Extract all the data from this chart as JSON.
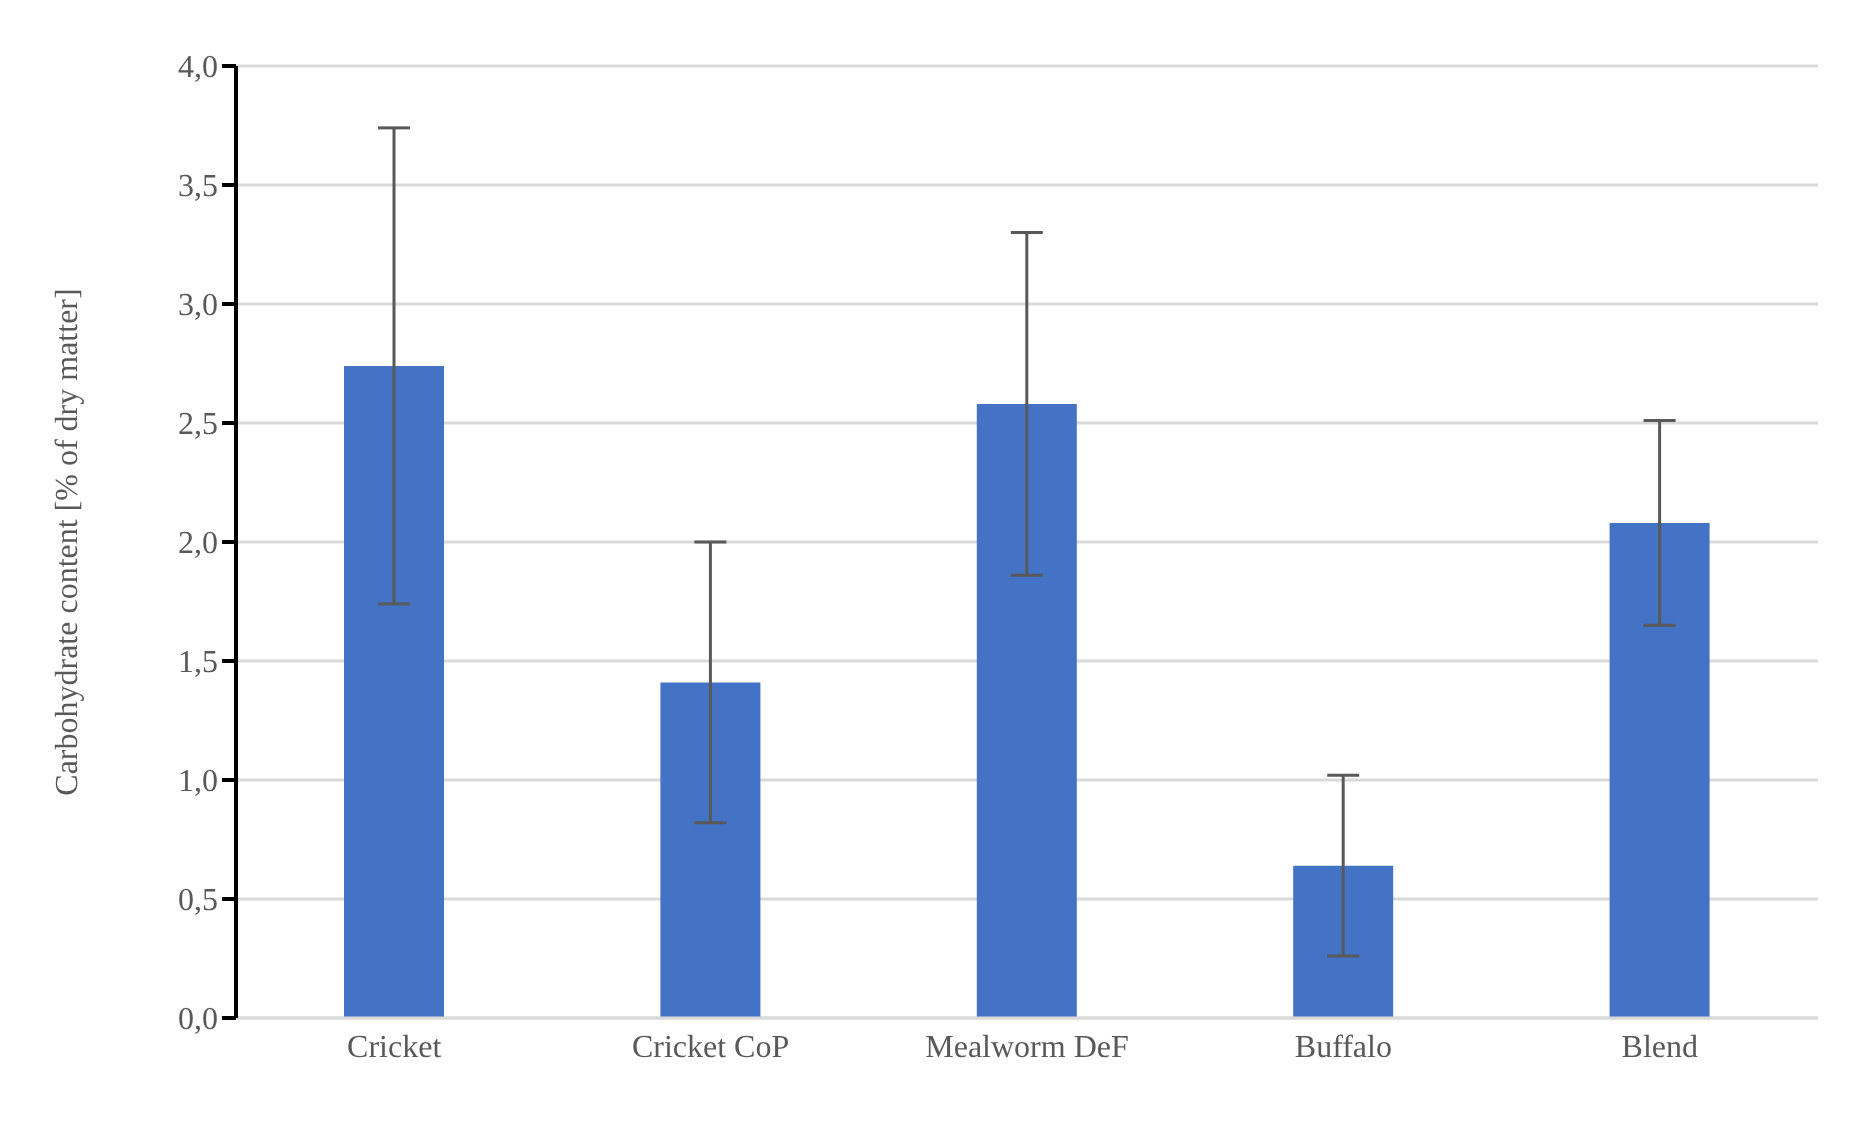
{
  "chart_data": {
    "type": "bar",
    "ylabel": "Carbohydrate content [% of dry matter]",
    "categories": [
      "Cricket",
      "Cricket CoP",
      "Mealworm DeF",
      "Buffalo",
      "Blend"
    ],
    "values": [
      2.74,
      1.41,
      2.58,
      0.64,
      2.08
    ],
    "errors": [
      1.0,
      0.59,
      0.72,
      0.38,
      0.43
    ],
    "color": "#4472c4",
    "ylim": [
      0,
      4
    ],
    "yticks": [
      {
        "value": 0,
        "label": "0,0"
      },
      {
        "value": 0.5,
        "label": "0,5"
      },
      {
        "value": 1,
        "label": "1,0"
      },
      {
        "value": 1.5,
        "label": "1,5"
      },
      {
        "value": 2,
        "label": "2,0"
      },
      {
        "value": 2.5,
        "label": "2,5"
      },
      {
        "value": 3,
        "label": "3,0"
      },
      {
        "value": 3.5,
        "label": "3,5"
      },
      {
        "value": 4,
        "label": "4,0"
      }
    ],
    "grid": "y",
    "legend": false
  }
}
